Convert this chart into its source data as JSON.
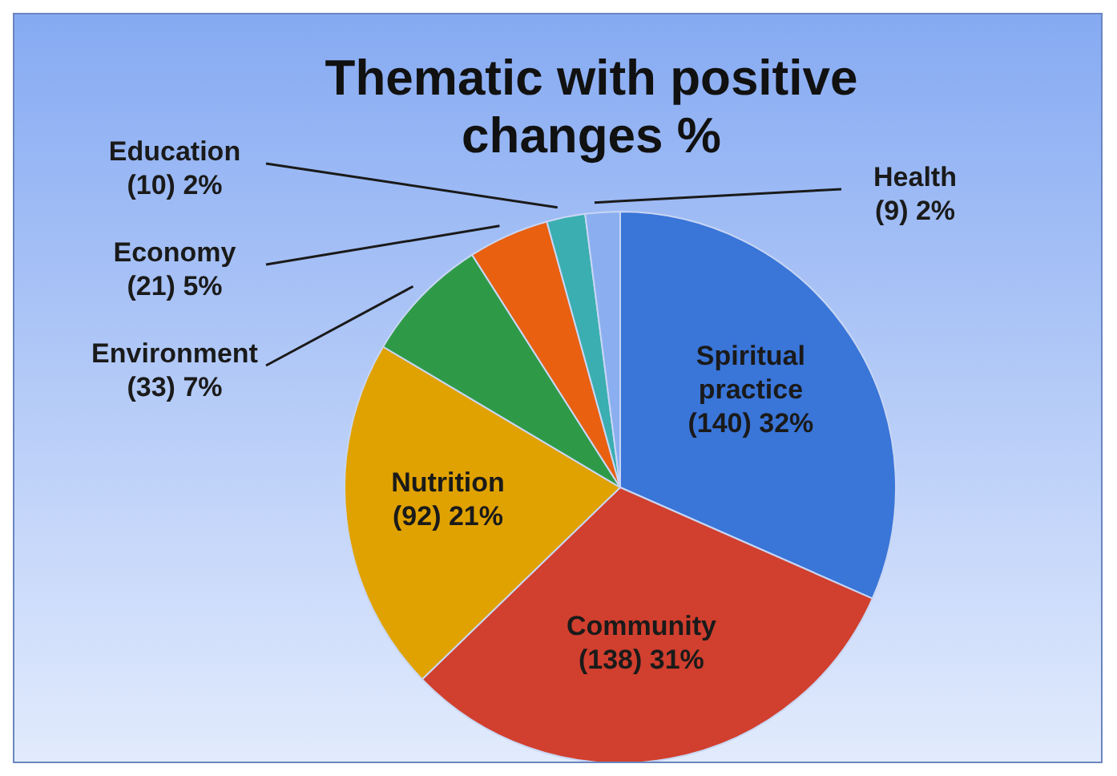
{
  "chart_data": {
    "type": "pie",
    "title": "Thematic with positive changes %",
    "categories": [
      "Spiritual practice",
      "Community",
      "Nutrition",
      "Environment",
      "Economy",
      "Education",
      "Health"
    ],
    "values": [
      140,
      138,
      92,
      33,
      21,
      10,
      9
    ],
    "value_labels": [
      "(140) 32%",
      "(138) 31%",
      "(92) 21%",
      "(33) 7%",
      "(21) 5%",
      "(10) 2%",
      "(9) 2%"
    ],
    "colors": [
      "#3a75d8",
      "#d13f2e",
      "#e0a200",
      "#2e9a48",
      "#e86010",
      "#3aaeb0",
      "#8aaef0"
    ]
  }
}
